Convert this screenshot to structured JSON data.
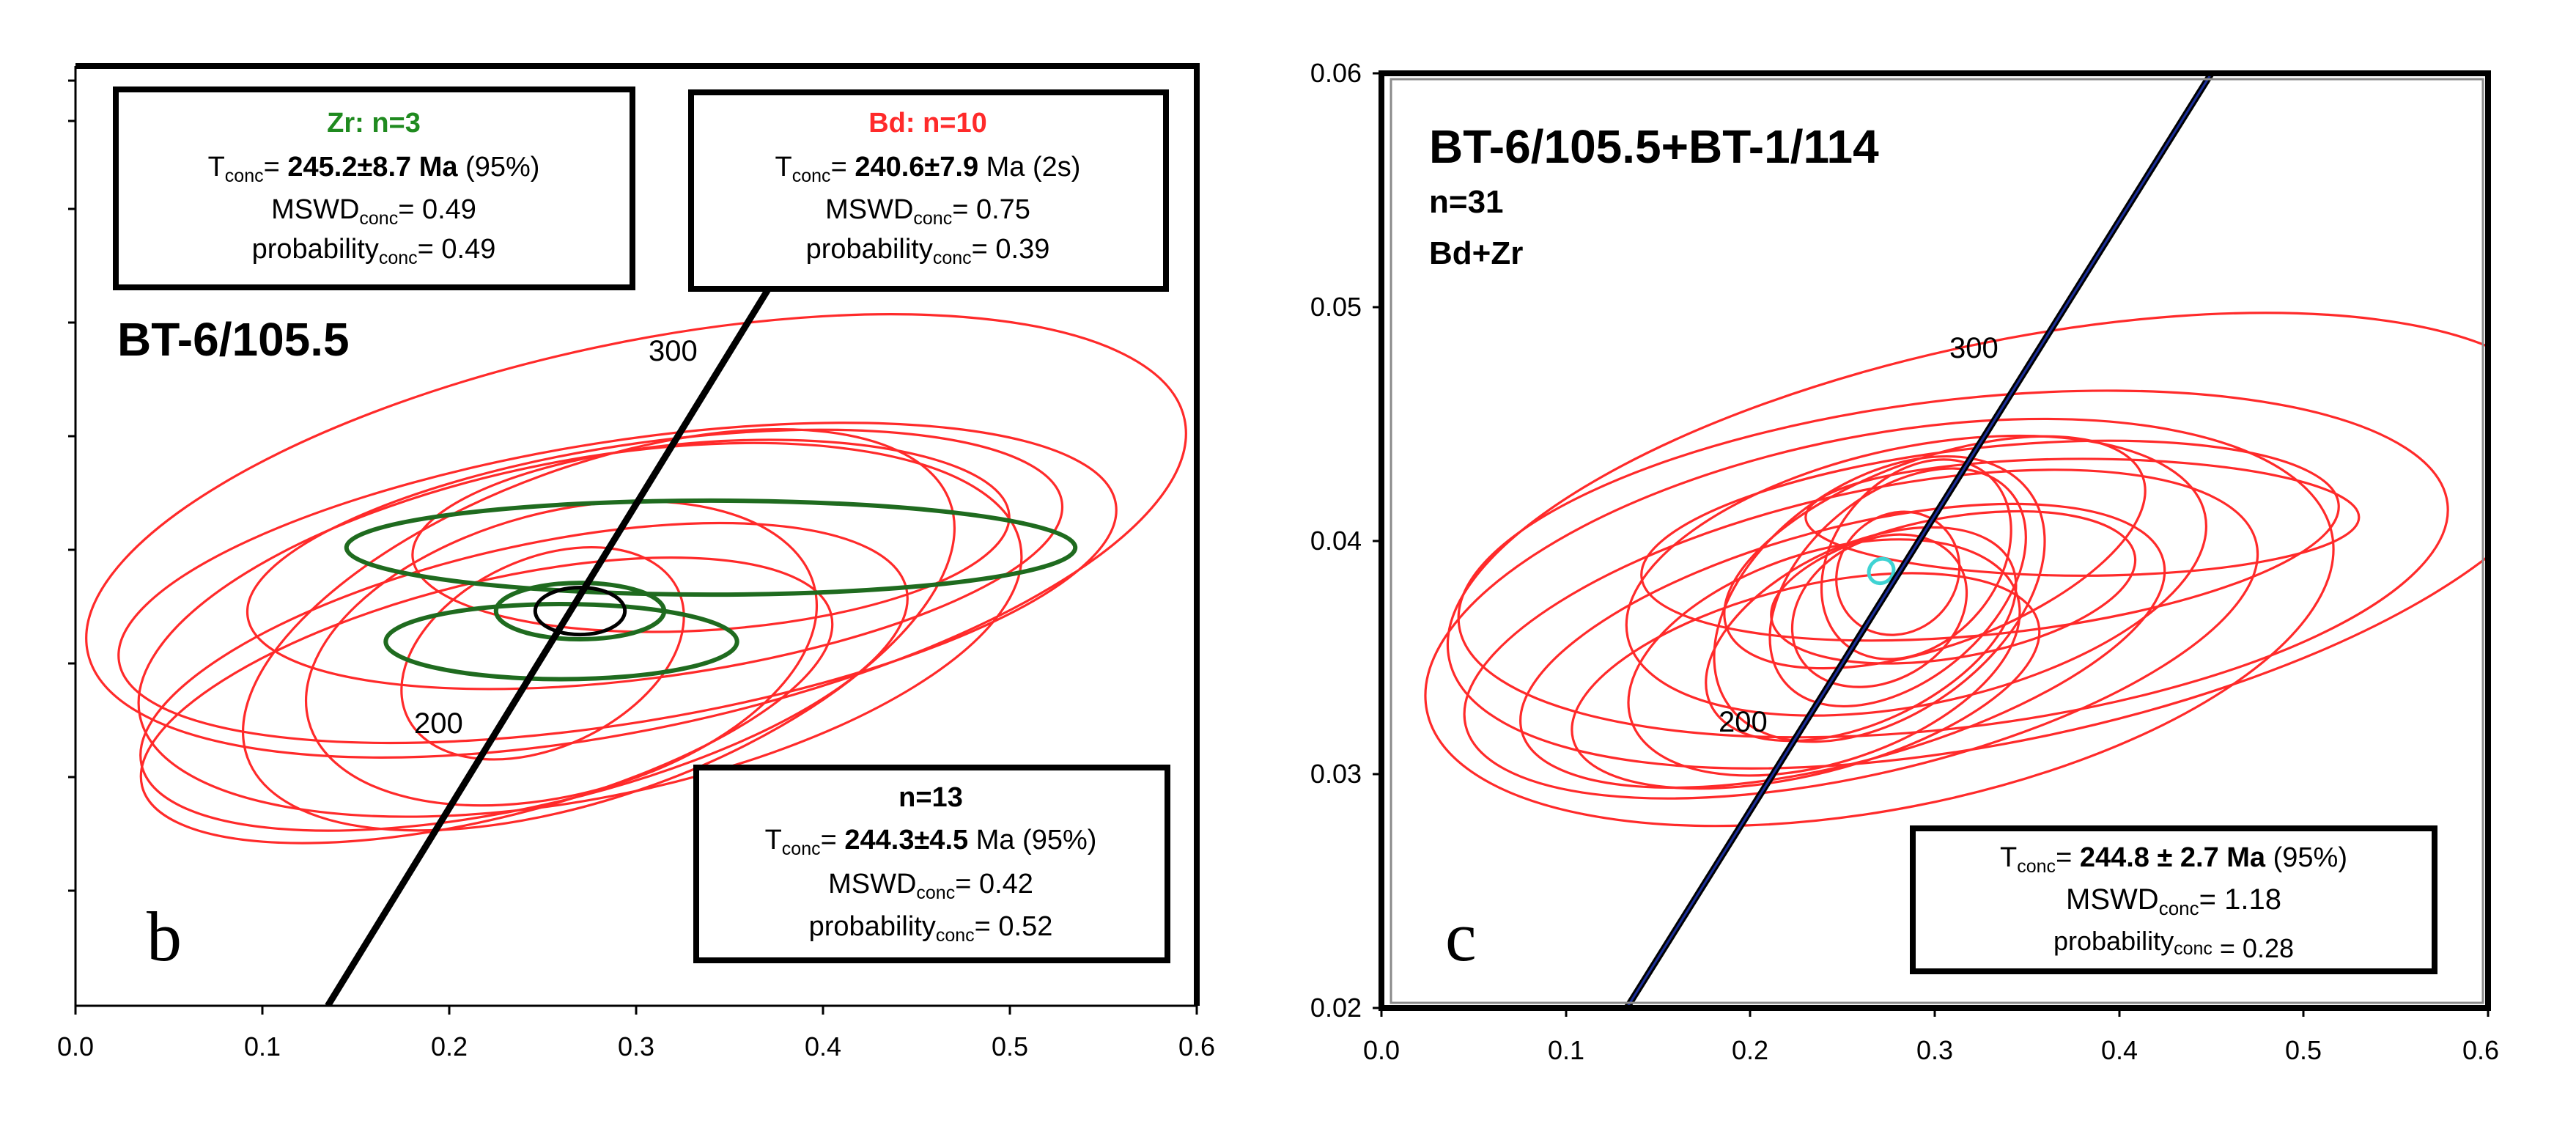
{
  "charts": [
    {
      "id": "b",
      "panel_letter": "b",
      "title": "BT-6/105.5",
      "x_ticks": [
        "0.0",
        "0.1",
        "0.2",
        "0.3",
        "0.4",
        "0.5",
        "0.6"
      ],
      "age_labels": [
        "300",
        "200"
      ],
      "boxes": [
        {
          "header": "Zr: n=3",
          "header_color": "#1f8a1f",
          "t_pre": "T",
          "t_sub": "conc",
          "t_eq": "= ",
          "t_value": "245.2±8.7 Ma",
          "t_note": " (95%)",
          "m_pre": "MSWD",
          "m_sub": "conc",
          "m_post": "= 0.49",
          "p_pre": "probability",
          "p_sub": "conc",
          "p_post": "= 0.49"
        },
        {
          "header": "Bd: n=10",
          "header_color": "#ff2a2a",
          "t_pre": "T",
          "t_sub": "conc",
          "t_eq": "= ",
          "t_value": "240.6±7.9",
          "t_note": " Ma (2s)",
          "m_pre": "MSWD",
          "m_sub": "conc",
          "m_post": "= 0.75",
          "p_pre": "probability",
          "p_sub": "conc",
          "p_post": "= 0.39"
        },
        {
          "header": "n=13",
          "header_color": "#000000",
          "t_pre": "T",
          "t_sub": "conc",
          "t_eq": "= ",
          "t_value": "244.3±4.5",
          "t_note": " Ma (95%)",
          "m_pre": "MSWD",
          "m_sub": "conc",
          "m_post": "= 0.42",
          "p_pre": "probability",
          "p_sub": "conc",
          "p_post": "= 0.52"
        }
      ]
    },
    {
      "id": "c",
      "panel_letter": "c",
      "title": "BT-6/105.5+BT-1/114",
      "subtitle_1": "n=31",
      "subtitle_2": "Bd+Zr",
      "x_ticks": [
        "0.0",
        "0.1",
        "0.2",
        "0.3",
        "0.4",
        "0.5",
        "0.6"
      ],
      "y_ticks": [
        "0.06",
        "0.05",
        "0.04",
        "0.03",
        "0.02"
      ],
      "age_labels": [
        "300",
        "200"
      ],
      "box": {
        "t_pre": "T",
        "t_sub": "conc",
        "t_eq": "= ",
        "t_value": "244.8 ± 2.7 Ma",
        "t_note": " (95%)",
        "m_pre": "MSWD",
        "m_sub": "conc",
        "m_post": "= 1.18",
        "p_pre": "probability",
        "p_sub": "conc",
        "p_post": " = 0.28"
      }
    }
  ],
  "chart_data": [
    {
      "type": "scatter",
      "panel": "b",
      "title": "BT-6/105.5",
      "xlabel": "",
      "ylabel": "",
      "xlim": [
        0.0,
        0.6
      ],
      "ylim": [
        0.02,
        0.06
      ],
      "concordia": {
        "points": [
          [
            0.135,
            0.02
          ],
          [
            0.373,
            0.0508
          ]
        ],
        "age_marks": [
          {
            "age": "300",
            "x": 0.33,
            "y": 0.0465
          },
          {
            "age": "200",
            "x": 0.22,
            "y": 0.032
          }
        ]
      },
      "series": [
        {
          "name": "Bd",
          "color": "#ff2a2a",
          "n": 10
        },
        {
          "name": "Zr",
          "color": "#1f6b1f",
          "n": 3
        },
        {
          "name": "Concordia age",
          "color": "#000000",
          "value": "244.3±4.5 Ma"
        }
      ],
      "ellipses": [
        {
          "s": "Bd",
          "cx": 0.3,
          "cy": 0.04,
          "rx": 0.3,
          "ry": 0.0082,
          "rot": -12
        },
        {
          "s": "Bd",
          "cx": 0.27,
          "cy": 0.036,
          "rx": 0.24,
          "ry": 0.0072,
          "rot": -11
        },
        {
          "s": "Bd",
          "cx": 0.29,
          "cy": 0.038,
          "rx": 0.27,
          "ry": 0.006,
          "rot": -9
        },
        {
          "s": "Bd",
          "cx": 0.24,
          "cy": 0.034,
          "rx": 0.21,
          "ry": 0.0055,
          "rot": -13
        },
        {
          "s": "Bd",
          "cx": 0.31,
          "cy": 0.039,
          "rx": 0.22,
          "ry": 0.005,
          "rot": -8
        },
        {
          "s": "Bd",
          "cx": 0.22,
          "cy": 0.033,
          "rx": 0.19,
          "ry": 0.005,
          "rot": -14
        },
        {
          "s": "Bd",
          "cx": 0.26,
          "cy": 0.035,
          "rx": 0.14,
          "ry": 0.006,
          "rot": -15
        },
        {
          "s": "Bd",
          "cx": 0.34,
          "cy": 0.04,
          "rx": 0.16,
          "ry": 0.004,
          "rot": -4
        },
        {
          "s": "Bd",
          "cx": 0.28,
          "cy": 0.036,
          "rx": 0.2,
          "ry": 0.007,
          "rot": -20
        },
        {
          "s": "Bd",
          "cx": 0.25,
          "cy": 0.035,
          "rx": 0.08,
          "ry": 0.004,
          "rot": -25
        },
        {
          "s": "Zr",
          "cx": 0.34,
          "cy": 0.0395,
          "rx": 0.195,
          "ry": 0.002,
          "rot": 0
        },
        {
          "s": "Zr",
          "cx": 0.26,
          "cy": 0.0355,
          "rx": 0.094,
          "ry": 0.0016,
          "rot": 0
        },
        {
          "s": "Zr",
          "cx": 0.27,
          "cy": 0.0368,
          "rx": 0.045,
          "ry": 0.0012,
          "rot": 0
        },
        {
          "s": "Concordia age",
          "cx": 0.27,
          "cy": 0.0368,
          "rx": 0.024,
          "ry": 0.001,
          "rot": 0
        }
      ]
    },
    {
      "type": "scatter",
      "panel": "c",
      "title": "BT-6/105.5+BT-1/114",
      "xlabel": "",
      "ylabel": "",
      "xlim": [
        0.0,
        0.6
      ],
      "ylim": [
        0.02,
        0.06
      ],
      "concordia": {
        "points": [
          [
            0.133,
            0.02
          ],
          [
            0.45,
            0.06
          ]
        ],
        "age_marks": [
          {
            "age": "300",
            "x": 0.355,
            "y": 0.0483
          },
          {
            "age": "200",
            "x": 0.23,
            "y": 0.0325
          }
        ]
      },
      "series": [
        {
          "name": "Bd+Zr",
          "color": "#ff2a2a",
          "n": 31
        },
        {
          "name": "Concordia age",
          "color": "#3fd3d3",
          "value": "244.8 ± 2.7 Ma"
        }
      ],
      "ellipses": [
        {
          "s": "Bd+Zr",
          "cx": 0.34,
          "cy": 0.04,
          "rx": 0.31,
          "ry": 0.0085,
          "rot": -12
        },
        {
          "s": "Bd+Zr",
          "cx": 0.27,
          "cy": 0.0365,
          "rx": 0.25,
          "ry": 0.008,
          "rot": -11
        },
        {
          "s": "Bd+Zr",
          "cx": 0.31,
          "cy": 0.039,
          "rx": 0.27,
          "ry": 0.007,
          "rot": -7
        },
        {
          "s": "Bd+Zr",
          "cx": 0.26,
          "cy": 0.036,
          "rx": 0.22,
          "ry": 0.006,
          "rot": -13
        },
        {
          "s": "Bd+Zr",
          "cx": 0.38,
          "cy": 0.041,
          "rx": 0.15,
          "ry": 0.0025,
          "rot": 0
        },
        {
          "s": "Bd+Zr",
          "cx": 0.33,
          "cy": 0.04,
          "rx": 0.19,
          "ry": 0.004,
          "rot": -6
        },
        {
          "s": "Bd+Zr",
          "cx": 0.29,
          "cy": 0.0385,
          "rx": 0.16,
          "ry": 0.0055,
          "rot": -12
        },
        {
          "s": "Bd+Zr",
          "cx": 0.25,
          "cy": 0.0355,
          "rx": 0.18,
          "ry": 0.005,
          "rot": -15
        },
        {
          "s": "Bd+Zr",
          "cx": 0.23,
          "cy": 0.034,
          "rx": 0.13,
          "ry": 0.004,
          "rot": -14
        },
        {
          "s": "Bd+Zr",
          "cx": 0.27,
          "cy": 0.0375,
          "rx": 0.1,
          "ry": 0.005,
          "rot": -35
        },
        {
          "s": "Bd+Zr",
          "cx": 0.28,
          "cy": 0.038,
          "rx": 0.08,
          "ry": 0.004,
          "rot": -40
        },
        {
          "s": "Bd+Zr",
          "cx": 0.29,
          "cy": 0.0392,
          "rx": 0.06,
          "ry": 0.0035,
          "rot": -50
        },
        {
          "s": "Bd+Zr",
          "cx": 0.27,
          "cy": 0.037,
          "rx": 0.05,
          "ry": 0.003,
          "rot": -30
        },
        {
          "s": "Bd+Zr",
          "cx": 0.28,
          "cy": 0.0386,
          "rx": 0.035,
          "ry": 0.0025,
          "rot": -45
        },
        {
          "s": "Bd+Zr",
          "cx": 0.3,
          "cy": 0.0395,
          "rx": 0.12,
          "ry": 0.004,
          "rot": -20
        },
        {
          "s": "Bd+Zr",
          "cx": 0.26,
          "cy": 0.036,
          "rx": 0.09,
          "ry": 0.0038,
          "rot": -25
        },
        {
          "s": "Bd+Zr",
          "cx": 0.31,
          "cy": 0.038,
          "rx": 0.1,
          "ry": 0.003,
          "rot": -10
        },
        {
          "s": "Bd+Zr",
          "cx": 0.24,
          "cy": 0.035,
          "rx": 0.11,
          "ry": 0.0045,
          "rot": -18
        },
        {
          "s": "Concordia age",
          "cx": 0.271,
          "cy": 0.0387,
          "rx": 0.007,
          "ry": 0.0005,
          "rot": -40
        }
      ]
    }
  ]
}
